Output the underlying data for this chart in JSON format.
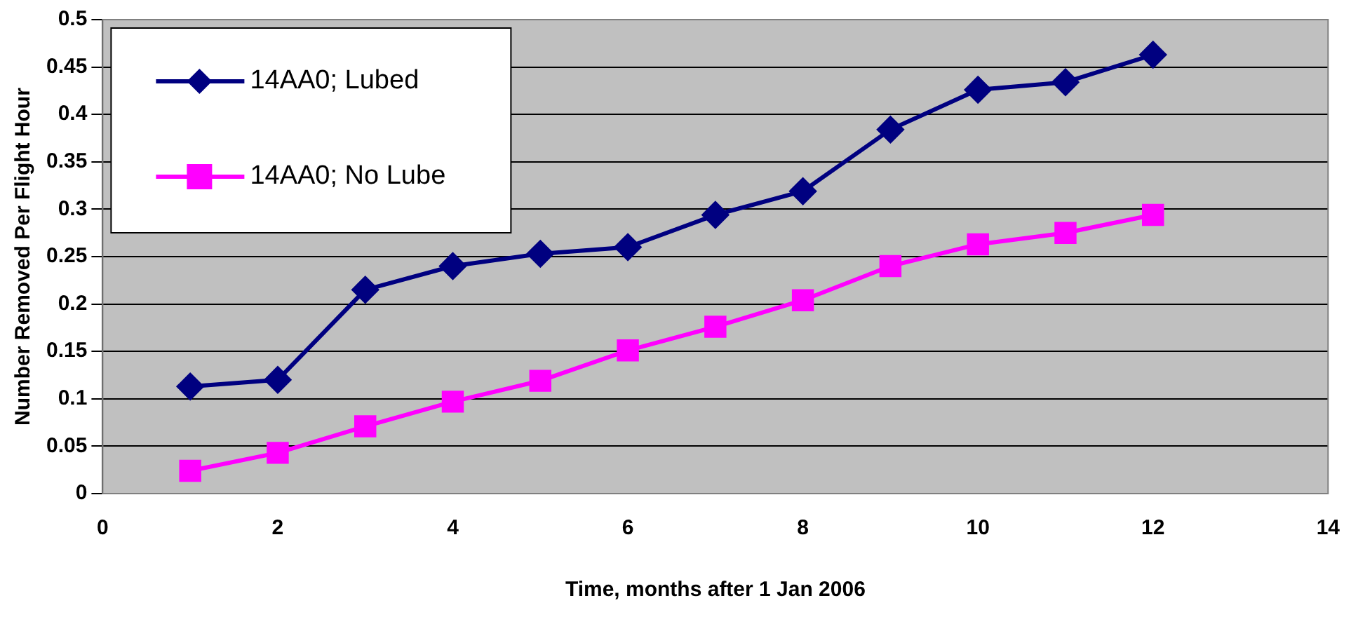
{
  "chart_data": {
    "type": "line",
    "xlabel": "Time, months after 1 Jan 2006",
    "ylabel": "Number Removed Per Flight Hour",
    "x": [
      1,
      2,
      3,
      4,
      5,
      6,
      7,
      8,
      9,
      10,
      11,
      12
    ],
    "series": [
      {
        "name": "14AA0; Lubed",
        "color": "#000080",
        "marker": "diamond",
        "values": [
          0.113,
          0.12,
          0.215,
          0.24,
          0.253,
          0.26,
          0.294,
          0.319,
          0.384,
          0.426,
          0.434,
          0.463
        ]
      },
      {
        "name": "14AA0; No Lube",
        "color": "#ff00ff",
        "marker": "square",
        "values": [
          0.024,
          0.043,
          0.071,
          0.097,
          0.119,
          0.151,
          0.176,
          0.204,
          0.24,
          0.263,
          0.275,
          0.294
        ]
      }
    ],
    "xlim": [
      0,
      14
    ],
    "xticks": [
      0,
      2,
      4,
      6,
      8,
      10,
      12,
      14
    ],
    "ylim": [
      0,
      0.5
    ],
    "yticks": [
      0,
      0.05,
      0.1,
      0.15,
      0.2,
      0.25,
      0.3,
      0.35,
      0.4,
      0.45,
      0.5
    ],
    "grid": "y",
    "legend": "top left",
    "line_style": "solid"
  }
}
